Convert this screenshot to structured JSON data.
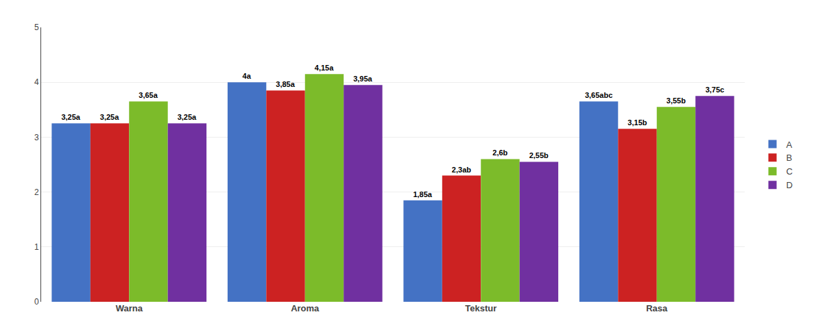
{
  "chart_data": {
    "type": "bar",
    "categories": [
      "Warna",
      "Aroma",
      "Tekstur",
      "Rasa"
    ],
    "series": [
      {
        "name": "A",
        "color": "#4472C4",
        "values": [
          3.25,
          4.0,
          1.85,
          3.65
        ],
        "value_labels": [
          "3,25a",
          "4a",
          "1,85a",
          "3,65abc"
        ]
      },
      {
        "name": "B",
        "color": "#CC2222",
        "values": [
          3.25,
          3.85,
          2.3,
          3.15
        ],
        "value_labels": [
          "3,25a",
          "3,85a",
          "2,3ab",
          "3,15b"
        ]
      },
      {
        "name": "C",
        "color": "#7CBB2A",
        "values": [
          3.65,
          4.15,
          2.6,
          3.55
        ],
        "value_labels": [
          "3,65a",
          "4,15a",
          "2,6b",
          "3,55b"
        ]
      },
      {
        "name": "D",
        "color": "#7030A0",
        "values": [
          3.25,
          3.95,
          2.55,
          3.75
        ],
        "value_labels": [
          "3,25a",
          "3,95a",
          "2,55b",
          "3,75c"
        ]
      }
    ],
    "ylim": [
      0,
      5
    ],
    "yticks": [
      0,
      1,
      2,
      3,
      4,
      5
    ],
    "grid": true,
    "legend": "right",
    "data_labels": true
  }
}
